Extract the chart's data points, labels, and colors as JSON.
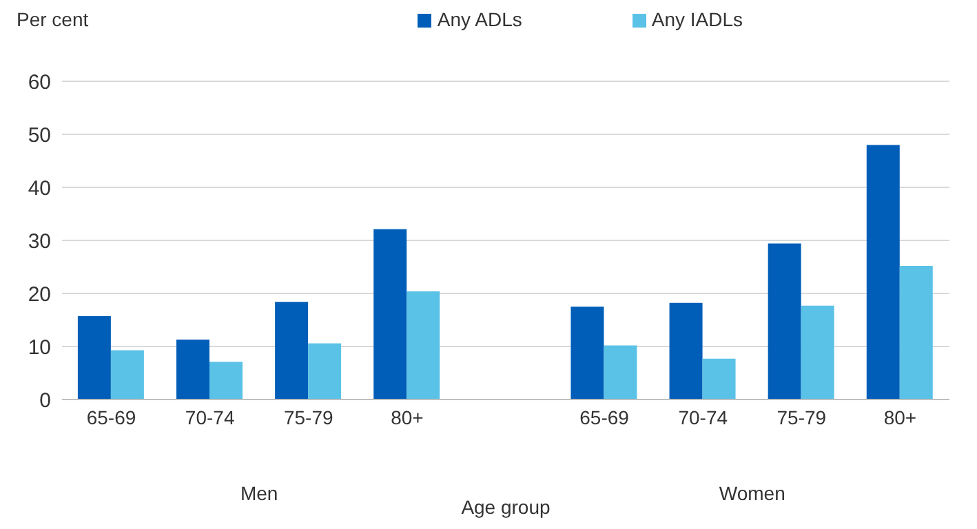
{
  "chart_data": {
    "type": "bar",
    "ylabel": "Per cent",
    "xlabel": "Age group",
    "categories": [
      "65-69",
      "70-74",
      "75-79",
      "80+",
      null,
      "65-69",
      "70-74",
      "75-79",
      "80+"
    ],
    "series": [
      {
        "name": "Any ADLs",
        "color": "#005eb8",
        "values": [
          15.7,
          11.3,
          18.4,
          32.1,
          null,
          17.5,
          18.2,
          29.4,
          48.0
        ]
      },
      {
        "name": "Any IADLs",
        "color": "#5bc2e7",
        "values": [
          9.3,
          7.1,
          10.6,
          20.4,
          null,
          10.2,
          7.7,
          17.7,
          25.2
        ]
      }
    ],
    "annotations": [
      "Men",
      "Women"
    ],
    "ylim": [
      0,
      60
    ],
    "yticks": [
      0,
      10,
      20,
      30,
      40,
      50,
      60
    ],
    "grid": "y",
    "legend": "top right"
  }
}
